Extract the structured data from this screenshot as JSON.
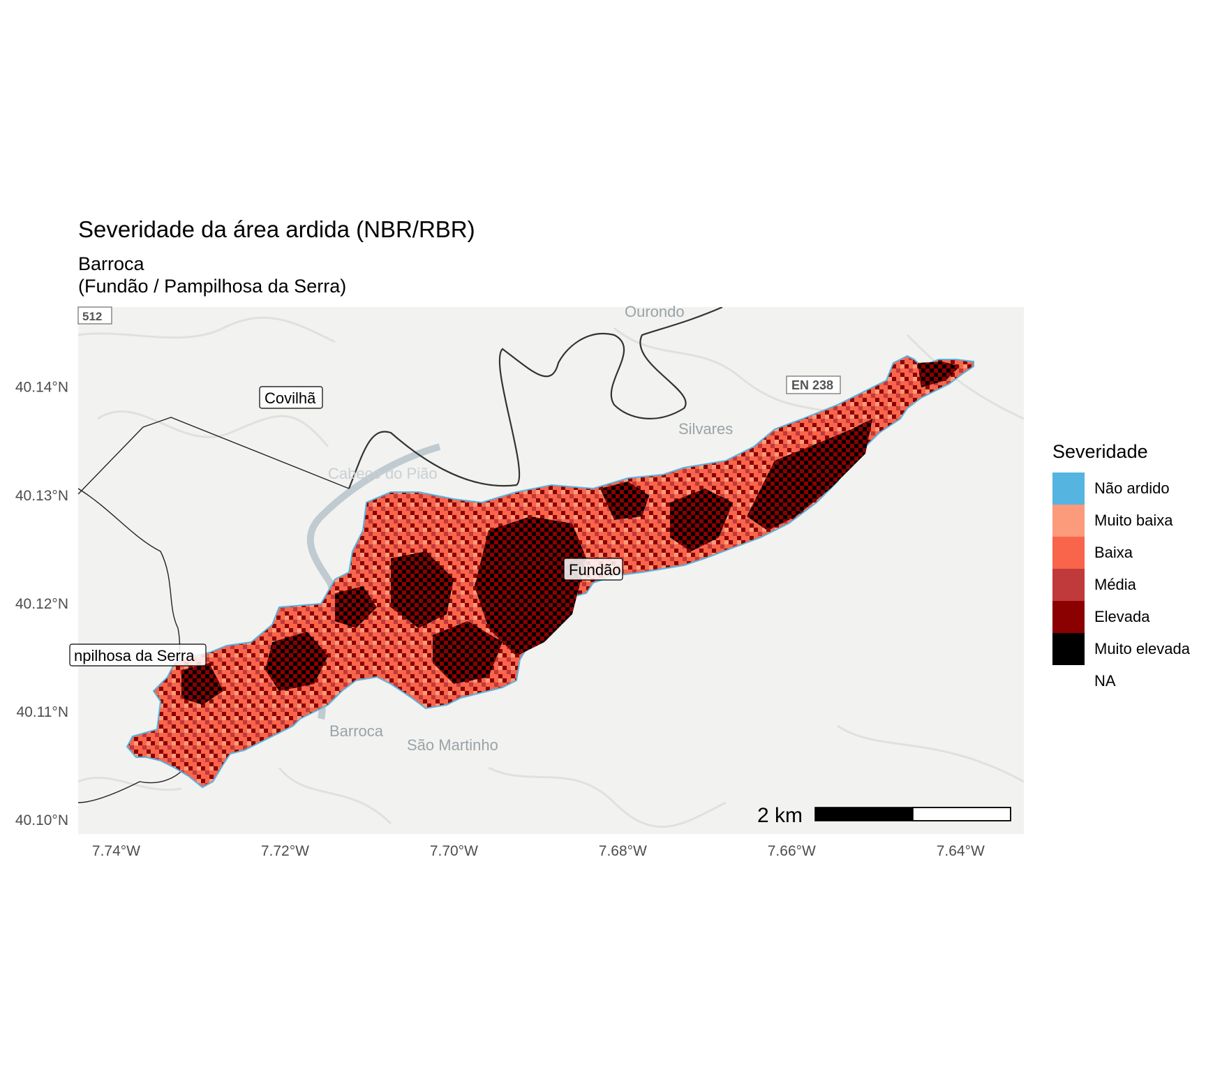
{
  "title": "Severidade da área ardida (NBR/RBR)",
  "subtitle": "Barroca\n(Fundão / Pampilhosa da Serra)",
  "map": {
    "lon_range": [
      -7.7445,
      -7.6325
    ],
    "lat_range": [
      40.0987,
      40.1474
    ],
    "x_ticks": [
      {
        "value": -7.74,
        "label": "7.74°W"
      },
      {
        "value": -7.72,
        "label": "7.72°W"
      },
      {
        "value": -7.7,
        "label": "7.70°W"
      },
      {
        "value": -7.68,
        "label": "7.68°W"
      },
      {
        "value": -7.66,
        "label": "7.66°W"
      },
      {
        "value": -7.64,
        "label": "7.64°W"
      }
    ],
    "y_ticks": [
      {
        "value": 40.14,
        "label": "40.14°N"
      },
      {
        "value": 40.13,
        "label": "40.13°N"
      },
      {
        "value": 40.12,
        "label": "40.12°N"
      },
      {
        "value": 40.11,
        "label": "40.11°N"
      },
      {
        "value": 40.1,
        "label": "40.10°N"
      }
    ],
    "basemap_labels": {
      "road_512": "512",
      "ourondo": "Ourondo",
      "en238": "EN 238",
      "silvares": "Silvares",
      "cabeco": "Cabeço do Pião",
      "barroca": "Barroca",
      "sao_martinho": "São Martinho"
    },
    "municipality_labels": {
      "covilha": "Covilhã",
      "fundao": "Fundão",
      "pampilhosa": "npilhosa da Serra"
    },
    "scale_bar": {
      "label": "2 km"
    }
  },
  "legend": {
    "title": "Severidade",
    "items": [
      {
        "label": "Não ardido",
        "color": "#56B4E0"
      },
      {
        "label": "Muito baixa",
        "color": "#FC9A7C"
      },
      {
        "label": "Baixa",
        "color": "#F8654B"
      },
      {
        "label": "Média",
        "color": "#C0393B"
      },
      {
        "label": "Elevada",
        "color": "#8B0000"
      },
      {
        "label": "Muito elevada",
        "color": "#000000"
      },
      {
        "label": "NA",
        "color": "#ffffff"
      }
    ]
  }
}
